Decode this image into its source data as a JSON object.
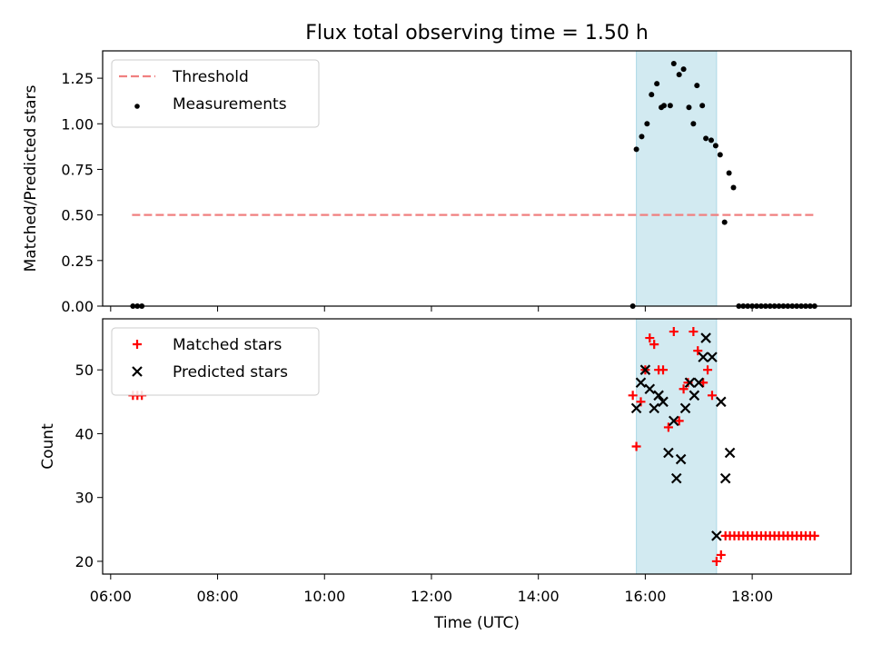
{
  "title": "Flux total observing time = 1.50 h",
  "xlabel": "Time (UTC)",
  "chart_data": [
    {
      "type": "scatter",
      "ylabel": "Matched/Predicted stars",
      "xlim": [
        "05:51",
        "19:51"
      ],
      "ylim": [
        0,
        1.4
      ],
      "yticks": [
        "0.00",
        "0.25",
        "0.50",
        "0.75",
        "1.00",
        "1.25"
      ],
      "shaded_region": {
        "from": "15:50",
        "to": "17:20",
        "color": "#add8e6"
      },
      "threshold": {
        "name": "Threshold",
        "value": 0.5,
        "from": "06:24",
        "to": "19:10",
        "color": "#f08080",
        "style": "dashed"
      },
      "series": [
        {
          "name": "Measurements",
          "color": "#000000",
          "marker": "dot",
          "points": [
            [
              "06:25",
              0
            ],
            [
              "06:30",
              0
            ],
            [
              "06:35",
              0
            ],
            [
              "15:46",
              0
            ],
            [
              "15:50",
              0.86
            ],
            [
              "15:56",
              0.93
            ],
            [
              "16:02",
              1.0
            ],
            [
              "16:07",
              1.16
            ],
            [
              "16:13",
              1.22
            ],
            [
              "16:18",
              1.09
            ],
            [
              "16:21",
              1.1
            ],
            [
              "16:28",
              1.1
            ],
            [
              "16:32",
              1.33
            ],
            [
              "16:38",
              1.27
            ],
            [
              "16:43",
              1.3
            ],
            [
              "16:49",
              1.09
            ],
            [
              "16:54",
              1.0
            ],
            [
              "16:58",
              1.21
            ],
            [
              "17:04",
              1.1
            ],
            [
              "17:08",
              0.92
            ],
            [
              "17:14",
              0.91
            ],
            [
              "17:19",
              0.88
            ],
            [
              "17:24",
              0.83
            ],
            [
              "17:29",
              0.46
            ],
            [
              "17:34",
              0.73
            ],
            [
              "17:39",
              0.65
            ],
            [
              "17:45",
              0
            ],
            [
              "17:50",
              0
            ],
            [
              "17:55",
              0
            ],
            [
              "18:00",
              0
            ],
            [
              "18:05",
              0
            ],
            [
              "18:10",
              0
            ],
            [
              "18:15",
              0
            ],
            [
              "18:20",
              0
            ],
            [
              "18:25",
              0
            ],
            [
              "18:30",
              0
            ],
            [
              "18:35",
              0
            ],
            [
              "18:40",
              0
            ],
            [
              "18:45",
              0
            ],
            [
              "18:50",
              0
            ],
            [
              "18:55",
              0
            ],
            [
              "19:00",
              0
            ],
            [
              "19:05",
              0
            ],
            [
              "19:10",
              0
            ]
          ]
        }
      ],
      "legend": {
        "placement": "top-left"
      }
    },
    {
      "type": "scatter",
      "ylabel": "Count",
      "xlim": [
        "05:51",
        "19:51"
      ],
      "ylim": [
        18,
        58
      ],
      "yticks": [
        "20",
        "30",
        "40",
        "50"
      ],
      "xticks": [
        "06:00",
        "08:00",
        "10:00",
        "12:00",
        "14:00",
        "16:00",
        "18:00"
      ],
      "shaded_region": {
        "from": "15:50",
        "to": "17:20",
        "color": "#add8e6"
      },
      "series": [
        {
          "name": "Matched stars",
          "color": "#ff0000",
          "marker": "plus",
          "points": [
            [
              "06:25",
              46
            ],
            [
              "06:30",
              46
            ],
            [
              "06:35",
              46
            ],
            [
              "15:46",
              46
            ],
            [
              "15:50",
              38
            ],
            [
              "15:55",
              45
            ],
            [
              "16:00",
              50
            ],
            [
              "16:05",
              55
            ],
            [
              "16:10",
              54
            ],
            [
              "16:15",
              50
            ],
            [
              "16:20",
              50
            ],
            [
              "16:26",
              41
            ],
            [
              "16:32",
              56
            ],
            [
              "16:38",
              42
            ],
            [
              "16:43",
              47
            ],
            [
              "16:48",
              48
            ],
            [
              "16:54",
              56
            ],
            [
              "16:59",
              53
            ],
            [
              "17:05",
              48
            ],
            [
              "17:10",
              50
            ],
            [
              "17:15",
              46
            ],
            [
              "17:20",
              20
            ],
            [
              "17:25",
              21
            ],
            [
              "17:30",
              24
            ],
            [
              "17:35",
              24
            ],
            [
              "17:40",
              24
            ],
            [
              "17:45",
              24
            ],
            [
              "17:50",
              24
            ],
            [
              "17:55",
              24
            ],
            [
              "18:00",
              24
            ],
            [
              "18:05",
              24
            ],
            [
              "18:10",
              24
            ],
            [
              "18:15",
              24
            ],
            [
              "18:20",
              24
            ],
            [
              "18:25",
              24
            ],
            [
              "18:30",
              24
            ],
            [
              "18:35",
              24
            ],
            [
              "18:40",
              24
            ],
            [
              "18:45",
              24
            ],
            [
              "18:50",
              24
            ],
            [
              "18:55",
              24
            ],
            [
              "19:00",
              24
            ],
            [
              "19:05",
              24
            ],
            [
              "19:10",
              24
            ]
          ]
        },
        {
          "name": "Predicted stars",
          "color": "#000000",
          "marker": "x",
          "points": [
            [
              "15:50",
              44
            ],
            [
              "15:55",
              48
            ],
            [
              "16:00",
              50
            ],
            [
              "16:05",
              47
            ],
            [
              "16:10",
              44
            ],
            [
              "16:15",
              46
            ],
            [
              "16:20",
              45
            ],
            [
              "16:26",
              37
            ],
            [
              "16:32",
              42
            ],
            [
              "16:35",
              33
            ],
            [
              "16:40",
              36
            ],
            [
              "16:45",
              44
            ],
            [
              "16:50",
              48
            ],
            [
              "16:55",
              46
            ],
            [
              "17:00",
              48
            ],
            [
              "17:05",
              52
            ],
            [
              "17:08",
              55
            ],
            [
              "17:15",
              52
            ],
            [
              "17:20",
              24
            ],
            [
              "17:25",
              45
            ],
            [
              "17:30",
              33
            ],
            [
              "17:35",
              37
            ]
          ]
        }
      ],
      "legend": {
        "placement": "top-left"
      }
    }
  ]
}
